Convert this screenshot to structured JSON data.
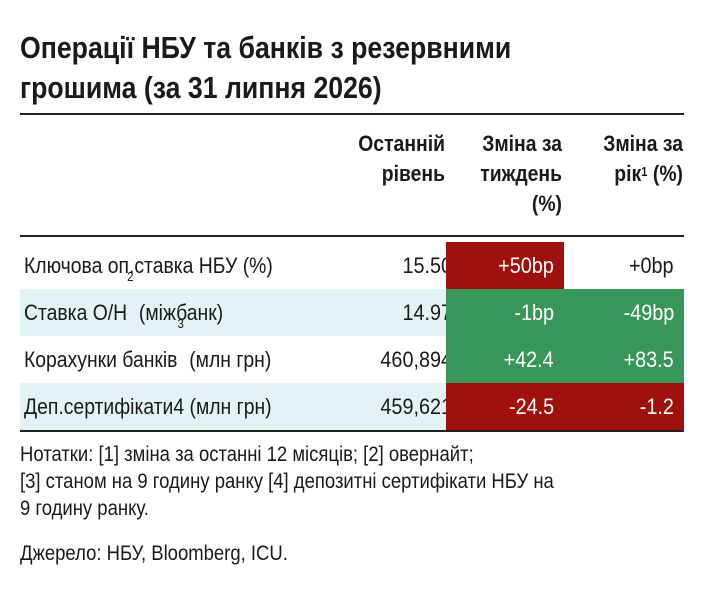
{
  "title_line1": "Операції НБУ та банків з резервними",
  "title_line2": "грошима (за 31 липня 2026)",
  "columns": {
    "last_level_line1": "Останній",
    "last_level_line2": "рівень",
    "week_change_line1": "Зміна за",
    "week_change_line2": "тиждень",
    "week_change_line3": "(%)",
    "year_change_line1": "Зміна за",
    "year_change_line2a": "рік",
    "year_change_sup": "1",
    "year_change_line2b": " (%)"
  },
  "rows": [
    {
      "label": "Ключова оп.ставка НБУ (%)",
      "label_sup": "",
      "label_after": "",
      "value": "15.50",
      "week": "+50bp",
      "year": "+0bp",
      "week_color": "#a0100c",
      "year_color": "#ffffff",
      "week_text_color": "#ffffff",
      "year_text_color": "#1a1a1a"
    },
    {
      "label": "Ставка O/H",
      "label_sup": "2",
      "label_after": " (міжбанк)",
      "value": "14.97",
      "week": "-1bp",
      "year": "-49bp",
      "week_color": "#38965a",
      "year_color": "#38965a",
      "week_text_color": "#ffffff",
      "year_text_color": "#ffffff"
    },
    {
      "label": "Корахунки банків",
      "label_sup": "3",
      "label_after": " (млн грн)",
      "value": "460,894",
      "week": "+42.4",
      "year": "+83.5",
      "week_color": "#38965a",
      "year_color": "#38965a",
      "week_text_color": "#ffffff",
      "year_text_color": "#ffffff"
    },
    {
      "label": "Деп.сертифікати4 (млн грн)",
      "label_sup": "",
      "label_after": "",
      "value": "459,621",
      "week": "-24.5",
      "year": "-1.2",
      "week_color": "#a0100c",
      "year_color": "#a0100c",
      "week_text_color": "#ffffff",
      "year_text_color": "#ffffff"
    }
  ],
  "notes": {
    "line1": "Нотатки: [1] зміна за останні 12 місяців; [2] овернайт;",
    "line2": "[3] станом на 9 годину ранку [4] депозитні сертифікати НБУ на",
    "line3": "9 годину ранку."
  },
  "source": "Джерело: НБУ, Bloomberg, ICU.",
  "colors": {
    "negative": "#a0100c",
    "positive": "#38965a",
    "row_shade": "#e3f2f5"
  }
}
